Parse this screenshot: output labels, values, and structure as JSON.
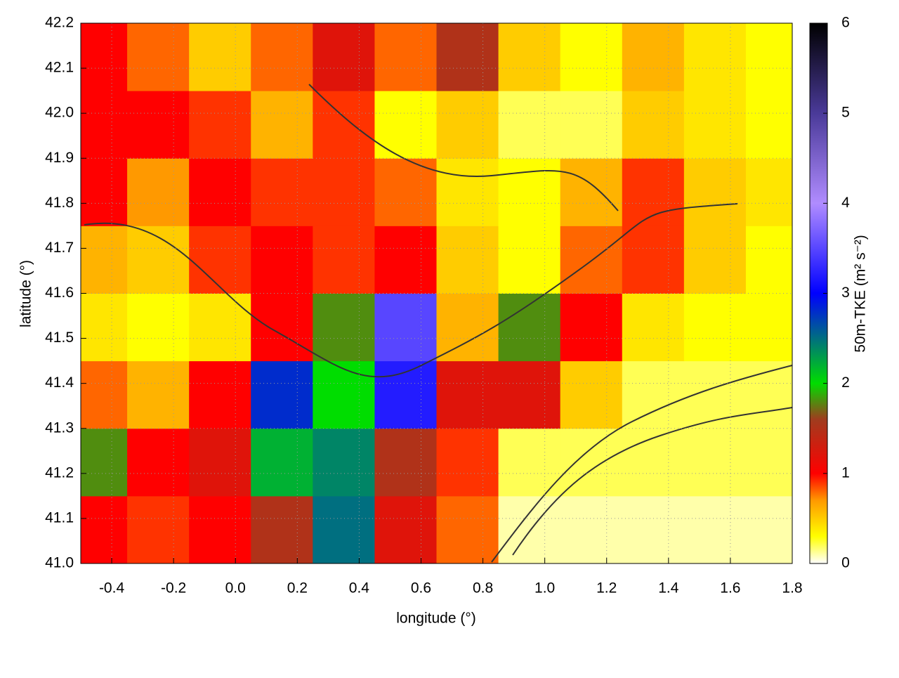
{
  "chart_data": {
    "type": "heatmap",
    "x_label": "longitude (°)",
    "y_label": "latitude (°)",
    "colorbar_label": "50m-TKE (m² s⁻²)",
    "x": [
      -0.45,
      -0.25,
      -0.05,
      0.15,
      0.35,
      0.55,
      0.75,
      0.95,
      1.15,
      1.35,
      1.55,
      1.75
    ],
    "y": [
      41.075,
      41.225,
      41.375,
      41.525,
      41.675,
      41.825,
      41.975,
      42.125
    ],
    "z": [
      [
        1.0,
        0.9,
        1.0,
        1.5,
        2.5,
        1.2,
        0.8,
        0.1,
        0.1,
        0.1,
        0.1,
        0.1
      ],
      [
        1.8,
        1.0,
        1.2,
        2.2,
        2.4,
        1.5,
        0.9,
        0.2,
        0.2,
        0.2,
        0.2,
        0.2
      ],
      [
        0.8,
        0.6,
        1.0,
        2.8,
        2.0,
        3.2,
        1.2,
        1.2,
        0.5,
        0.2,
        0.2,
        0.2
      ],
      [
        0.4,
        0.3,
        0.4,
        1.0,
        1.8,
        3.5,
        0.6,
        1.8,
        1.0,
        0.4,
        0.3,
        0.3
      ],
      [
        0.6,
        0.5,
        0.9,
        1.0,
        0.9,
        1.0,
        0.5,
        0.3,
        0.8,
        0.9,
        0.5,
        0.3
      ],
      [
        1.0,
        0.7,
        1.0,
        0.9,
        0.9,
        0.8,
        0.4,
        0.3,
        0.6,
        0.9,
        0.5,
        0.4
      ],
      [
        1.0,
        1.0,
        0.9,
        0.6,
        0.9,
        0.3,
        0.5,
        0.2,
        0.2,
        0.5,
        0.4,
        0.3
      ],
      [
        1.0,
        0.8,
        0.5,
        0.8,
        1.2,
        0.8,
        1.5,
        0.5,
        0.3,
        0.6,
        0.4,
        0.3
      ]
    ],
    "xlim": [
      -0.5,
      1.8
    ],
    "xticks": [
      -0.4,
      -0.2,
      {
        "value": 0,
        "label": "0.0"
      },
      0.2,
      0.4,
      0.6,
      0.8,
      {
        "value": 1,
        "label": "1.0"
      },
      1.2,
      1.4,
      1.6,
      1.8
    ],
    "ylim": [
      41.0,
      42.2
    ],
    "yticks": [
      {
        "value": 41,
        "label": "41.0"
      },
      41.1,
      41.2,
      41.3,
      41.4,
      41.5,
      41.6,
      41.7,
      41.8,
      41.9,
      {
        "value": 42,
        "label": "42.0"
      },
      42.1,
      42.2
    ],
    "clim": [
      0,
      6
    ],
    "cticks": [
      0,
      1,
      2,
      3,
      4,
      5,
      6
    ],
    "colormap": [
      {
        "value": 0,
        "color": "#ffffff"
      },
      {
        "value": 0.3,
        "color": "#ffff00"
      },
      {
        "value": 0.7,
        "color": "#ff9900"
      },
      {
        "value": 1,
        "color": "#ff0000"
      },
      {
        "value": 1.6,
        "color": "#a03c1e"
      },
      {
        "value": 2,
        "color": "#00dd00"
      },
      {
        "value": 3,
        "color": "#0000ff"
      },
      {
        "value": 4,
        "color": "#b08cff"
      },
      {
        "value": 5,
        "color": "#4a3a99"
      },
      {
        "value": 6,
        "color": "#000000"
      }
    ],
    "grid": true
  }
}
